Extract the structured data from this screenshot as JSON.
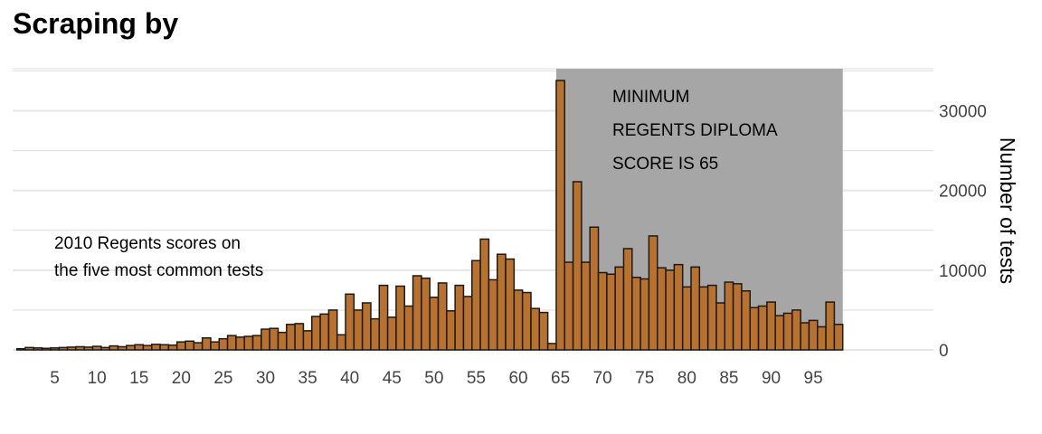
{
  "title": "Scraping by",
  "colors": {
    "bar_fill": "#B8722E",
    "bar_stroke": "#1a1a1a",
    "highlight_fill": "#A6A6A6",
    "grid": "#E5E5E5"
  },
  "chart_data": {
    "type": "bar",
    "title": "Scraping by",
    "xlabel": "",
    "ylabel": "Number of tests",
    "y_axis_side": "right",
    "x_ticks": [
      5,
      10,
      15,
      20,
      25,
      30,
      35,
      40,
      45,
      50,
      55,
      60,
      65,
      70,
      75,
      80,
      85,
      90,
      95
    ],
    "y_ticks": [
      0,
      10000,
      20000,
      30000
    ],
    "y_tick_labels": [
      "0",
      "10000",
      "20000",
      "30000"
    ],
    "xlim": [
      0,
      99
    ],
    "ylim": [
      0,
      35000
    ],
    "grid": true,
    "highlight_region": {
      "x_from": 65,
      "x_to": 99
    },
    "annotations": [
      {
        "lines": [
          "2010 Regents scores on",
          "the five most common tests"
        ],
        "x": 2,
        "y": 13500
      },
      {
        "lines": [
          "MINIMUM",
          "REGENTS DIPLOMA",
          "SCORE IS 65"
        ],
        "x": 66,
        "y": 31500
      }
    ],
    "x": [
      1,
      2,
      3,
      4,
      5,
      6,
      7,
      8,
      9,
      10,
      11,
      12,
      13,
      14,
      15,
      16,
      17,
      18,
      19,
      20,
      21,
      22,
      23,
      24,
      25,
      26,
      27,
      28,
      29,
      30,
      31,
      32,
      33,
      34,
      35,
      36,
      37,
      38,
      39,
      40,
      41,
      42,
      43,
      44,
      45,
      46,
      47,
      48,
      49,
      50,
      51,
      52,
      53,
      54,
      55,
      56,
      57,
      58,
      59,
      60,
      61,
      62,
      63,
      64,
      65,
      66,
      67,
      68,
      69,
      70,
      71,
      72,
      73,
      74,
      75,
      76,
      77,
      78,
      79,
      80,
      81,
      82,
      83,
      84,
      85,
      86,
      87,
      88,
      89,
      90,
      91,
      92,
      93,
      94,
      95,
      96,
      97,
      98
    ],
    "values": [
      150,
      300,
      250,
      200,
      250,
      300,
      350,
      400,
      350,
      450,
      300,
      500,
      400,
      550,
      650,
      550,
      700,
      650,
      600,
      1000,
      1100,
      900,
      1500,
      1000,
      1400,
      1800,
      1600,
      1700,
      1800,
      2600,
      2700,
      2200,
      3200,
      3300,
      2400,
      4200,
      4500,
      5000,
      1900,
      7000,
      5000,
      5900,
      3900,
      8100,
      4100,
      8000,
      5500,
      9300,
      9000,
      6600,
      8400,
      4900,
      8100,
      6700,
      11200,
      13900,
      8800,
      12000,
      11400,
      7500,
      7200,
      5200,
      4700,
      800,
      33800,
      11000,
      21100,
      11000,
      15400,
      9700,
      9500,
      10400,
      12700,
      9100,
      8900,
      14300,
      10300,
      10000,
      10700,
      7900,
      10400,
      7900,
      8100,
      5900,
      8500,
      8300,
      7400,
      5300,
      5500,
      6000,
      4300,
      4600,
      5000,
      3400,
      3700,
      2900,
      6000,
      3200
    ]
  }
}
